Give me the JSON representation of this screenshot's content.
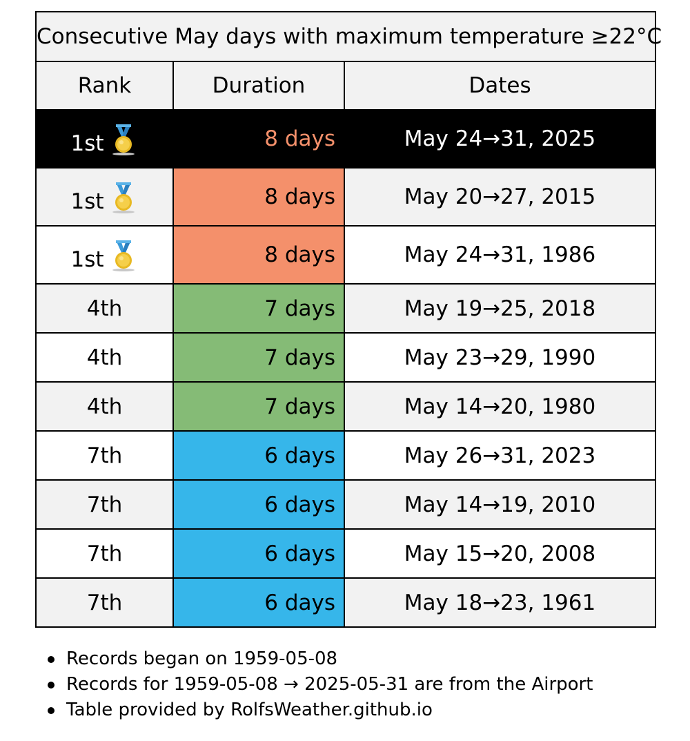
{
  "table": {
    "title": "Consecutive May days with maximum temperature ≥22°C",
    "headers": {
      "rank": "Rank",
      "duration": "Duration",
      "dates": "Dates"
    },
    "rows": [
      {
        "rank": "1st",
        "medal": "gold-medal-icon",
        "duration": "8 days",
        "dates": "May 24→31, 2025",
        "row_bg": "#000000",
        "text_color": "#ffffff",
        "duration_bg": "#000000",
        "duration_color": "#f4906b"
      },
      {
        "rank": "1st",
        "medal": "gold-medal-icon",
        "duration": "8 days",
        "dates": "May 20→27, 2015",
        "row_bg": "#f2f2f2",
        "text_color": "#000000",
        "duration_bg": "#f4906b",
        "duration_color": "#000000"
      },
      {
        "rank": "1st",
        "medal": "gold-medal-icon",
        "duration": "8 days",
        "dates": "May 24→31, 1986",
        "row_bg": "#ffffff",
        "text_color": "#000000",
        "duration_bg": "#f4906b",
        "duration_color": "#000000"
      },
      {
        "rank": "4th",
        "medal": null,
        "duration": "7 days",
        "dates": "May 19→25, 2018",
        "row_bg": "#f2f2f2",
        "text_color": "#000000",
        "duration_bg": "#85bb76",
        "duration_color": "#000000"
      },
      {
        "rank": "4th",
        "medal": null,
        "duration": "7 days",
        "dates": "May 23→29, 1990",
        "row_bg": "#ffffff",
        "text_color": "#000000",
        "duration_bg": "#85bb76",
        "duration_color": "#000000"
      },
      {
        "rank": "4th",
        "medal": null,
        "duration": "7 days",
        "dates": "May 14→20, 1980",
        "row_bg": "#f2f2f2",
        "text_color": "#000000",
        "duration_bg": "#85bb76",
        "duration_color": "#000000"
      },
      {
        "rank": "7th",
        "medal": null,
        "duration": "6 days",
        "dates": "May 26→31, 2023",
        "row_bg": "#ffffff",
        "text_color": "#000000",
        "duration_bg": "#36b6ea",
        "duration_color": "#000000"
      },
      {
        "rank": "7th",
        "medal": null,
        "duration": "6 days",
        "dates": "May 14→19, 2010",
        "row_bg": "#f2f2f2",
        "text_color": "#000000",
        "duration_bg": "#36b6ea",
        "duration_color": "#000000"
      },
      {
        "rank": "7th",
        "medal": null,
        "duration": "6 days",
        "dates": "May 15→20, 2008",
        "row_bg": "#ffffff",
        "text_color": "#000000",
        "duration_bg": "#36b6ea",
        "duration_color": "#000000"
      },
      {
        "rank": "7th",
        "medal": null,
        "duration": "6 days",
        "dates": "May 18→23, 1961",
        "row_bg": "#f2f2f2",
        "text_color": "#000000",
        "duration_bg": "#36b6ea",
        "duration_color": "#000000"
      }
    ]
  },
  "notes": [
    "Records began on 1959-05-08",
    "Records for 1959-05-08 → 2025-05-31 are from the Airport",
    "Table provided by RolfsWeather.github.io"
  ]
}
